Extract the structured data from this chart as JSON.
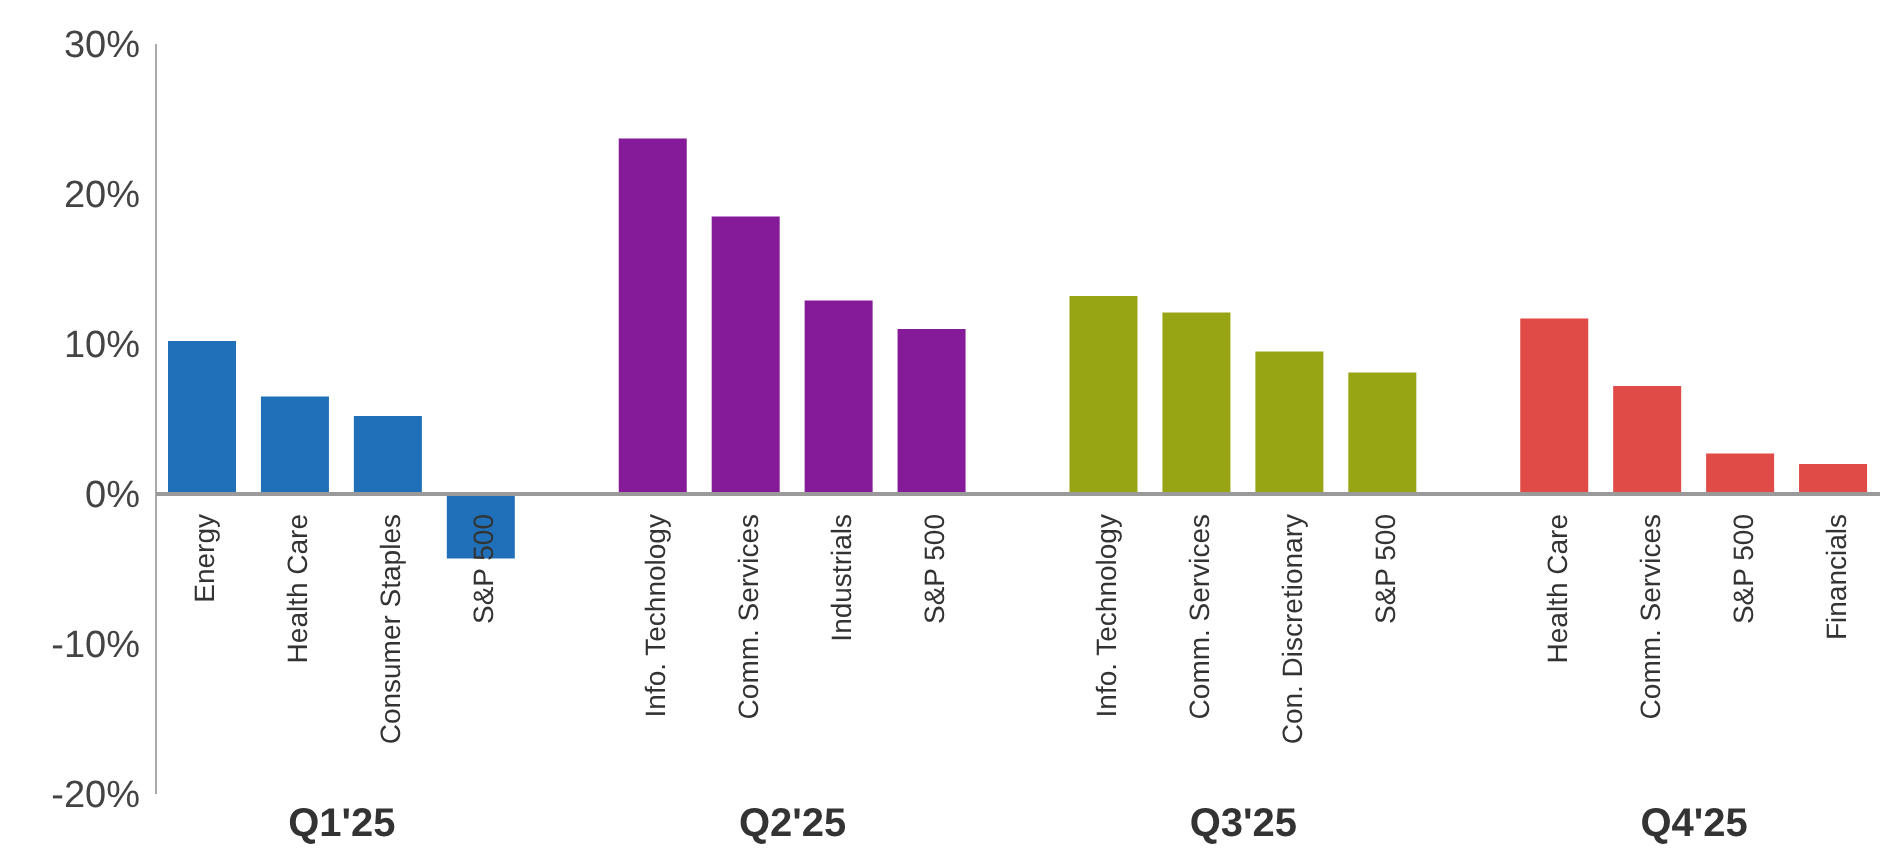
{
  "chart_data": {
    "type": "bar",
    "categories": [
      "Energy",
      "Health Care",
      "Consumer Staples",
      "S&P 500",
      "Info. Technology",
      "Comm. Services",
      "Industrials",
      "S&P 500",
      "Info. Technology",
      "Comm. Services",
      "Con. Discretionary",
      "S&P 500",
      "Health Care",
      "Comm. Services",
      "S&P 500",
      "Financials"
    ],
    "values": [
      10.2,
      6.5,
      5.2,
      -4.3,
      23.7,
      18.5,
      12.9,
      11.0,
      13.2,
      12.1,
      9.5,
      8.1,
      11.7,
      7.2,
      2.7,
      2.0
    ],
    "colors": [
      "#1f70b8",
      "#1f70b8",
      "#1f70b8",
      "#1f70b8",
      "#861b9a",
      "#861b9a",
      "#861b9a",
      "#861b9a",
      "#97a514",
      "#97a514",
      "#97a514",
      "#97a514",
      "#e04a47",
      "#e04a47",
      "#e04a47",
      "#e04a47"
    ],
    "ylim": [
      -20,
      30
    ],
    "yticks": [
      {
        "value": -20,
        "label": "-20%"
      },
      {
        "value": -10,
        "label": "-10%"
      },
      {
        "value": 0,
        "label": "0%"
      },
      {
        "value": 10,
        "label": "10%"
      },
      {
        "value": 20,
        "label": "20%"
      },
      {
        "value": 30,
        "label": "30%"
      }
    ],
    "annotations": [
      "Q1'25",
      "Q2'25",
      "Q3'25",
      "Q4'25"
    ]
  }
}
